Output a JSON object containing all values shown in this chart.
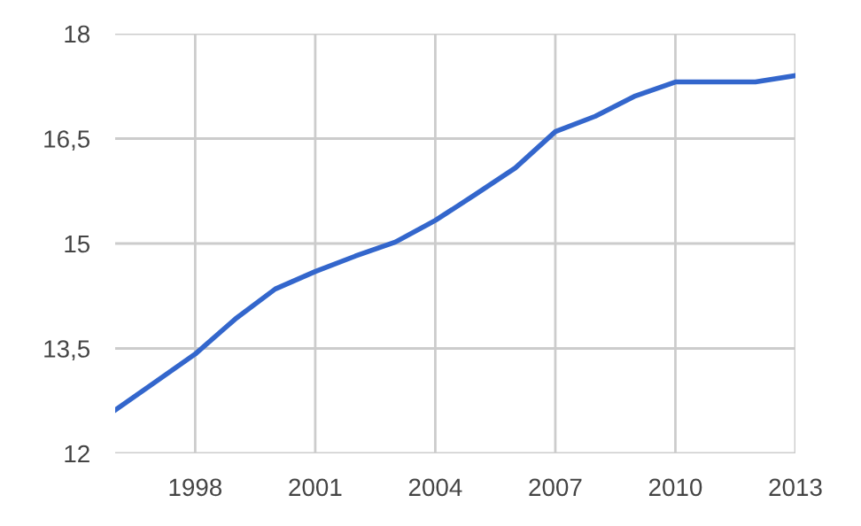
{
  "chart_data": {
    "type": "line",
    "x": [
      1996,
      1997,
      1998,
      1999,
      2000,
      2001,
      2002,
      2003,
      2004,
      2005,
      2006,
      2007,
      2008,
      2009,
      2010,
      2011,
      2012,
      2013
    ],
    "series": [
      {
        "color": "#3366cc",
        "values": [
          12.62,
          13.02,
          13.42,
          13.92,
          14.35,
          14.6,
          14.82,
          15.02,
          15.33,
          15.7,
          16.08,
          16.6,
          16.82,
          17.11,
          17.31,
          17.31,
          17.31,
          17.4
        ]
      }
    ],
    "xlim": [
      1996,
      2013
    ],
    "xticks": [
      1998,
      2001,
      2004,
      2007,
      2010,
      2013
    ],
    "ylim": [
      12,
      18
    ],
    "yticks": [
      12,
      {
        "value": 13.5,
        "label": "13,5"
      },
      15,
      {
        "value": 16.5,
        "label": "16,5"
      },
      18
    ],
    "grid": true,
    "legend": false,
    "marker": "none",
    "line_style": "solid"
  }
}
